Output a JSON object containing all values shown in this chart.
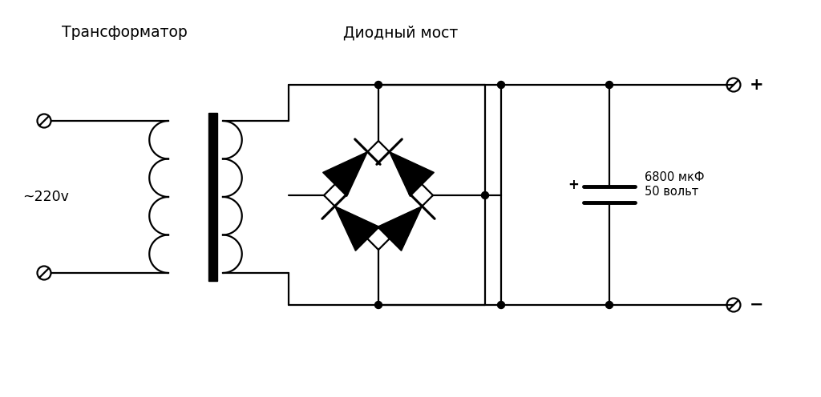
{
  "title_transformer": "Трансформатор",
  "title_bridge": "Диодный мост",
  "label_220": "~220v",
  "label_cap": "6800 мкФ\n50 вольт",
  "bg_color": "#ffffff",
  "line_color": "#000000",
  "line_width": 1.6,
  "figsize": [
    10.24,
    4.96
  ],
  "dpi": 100
}
